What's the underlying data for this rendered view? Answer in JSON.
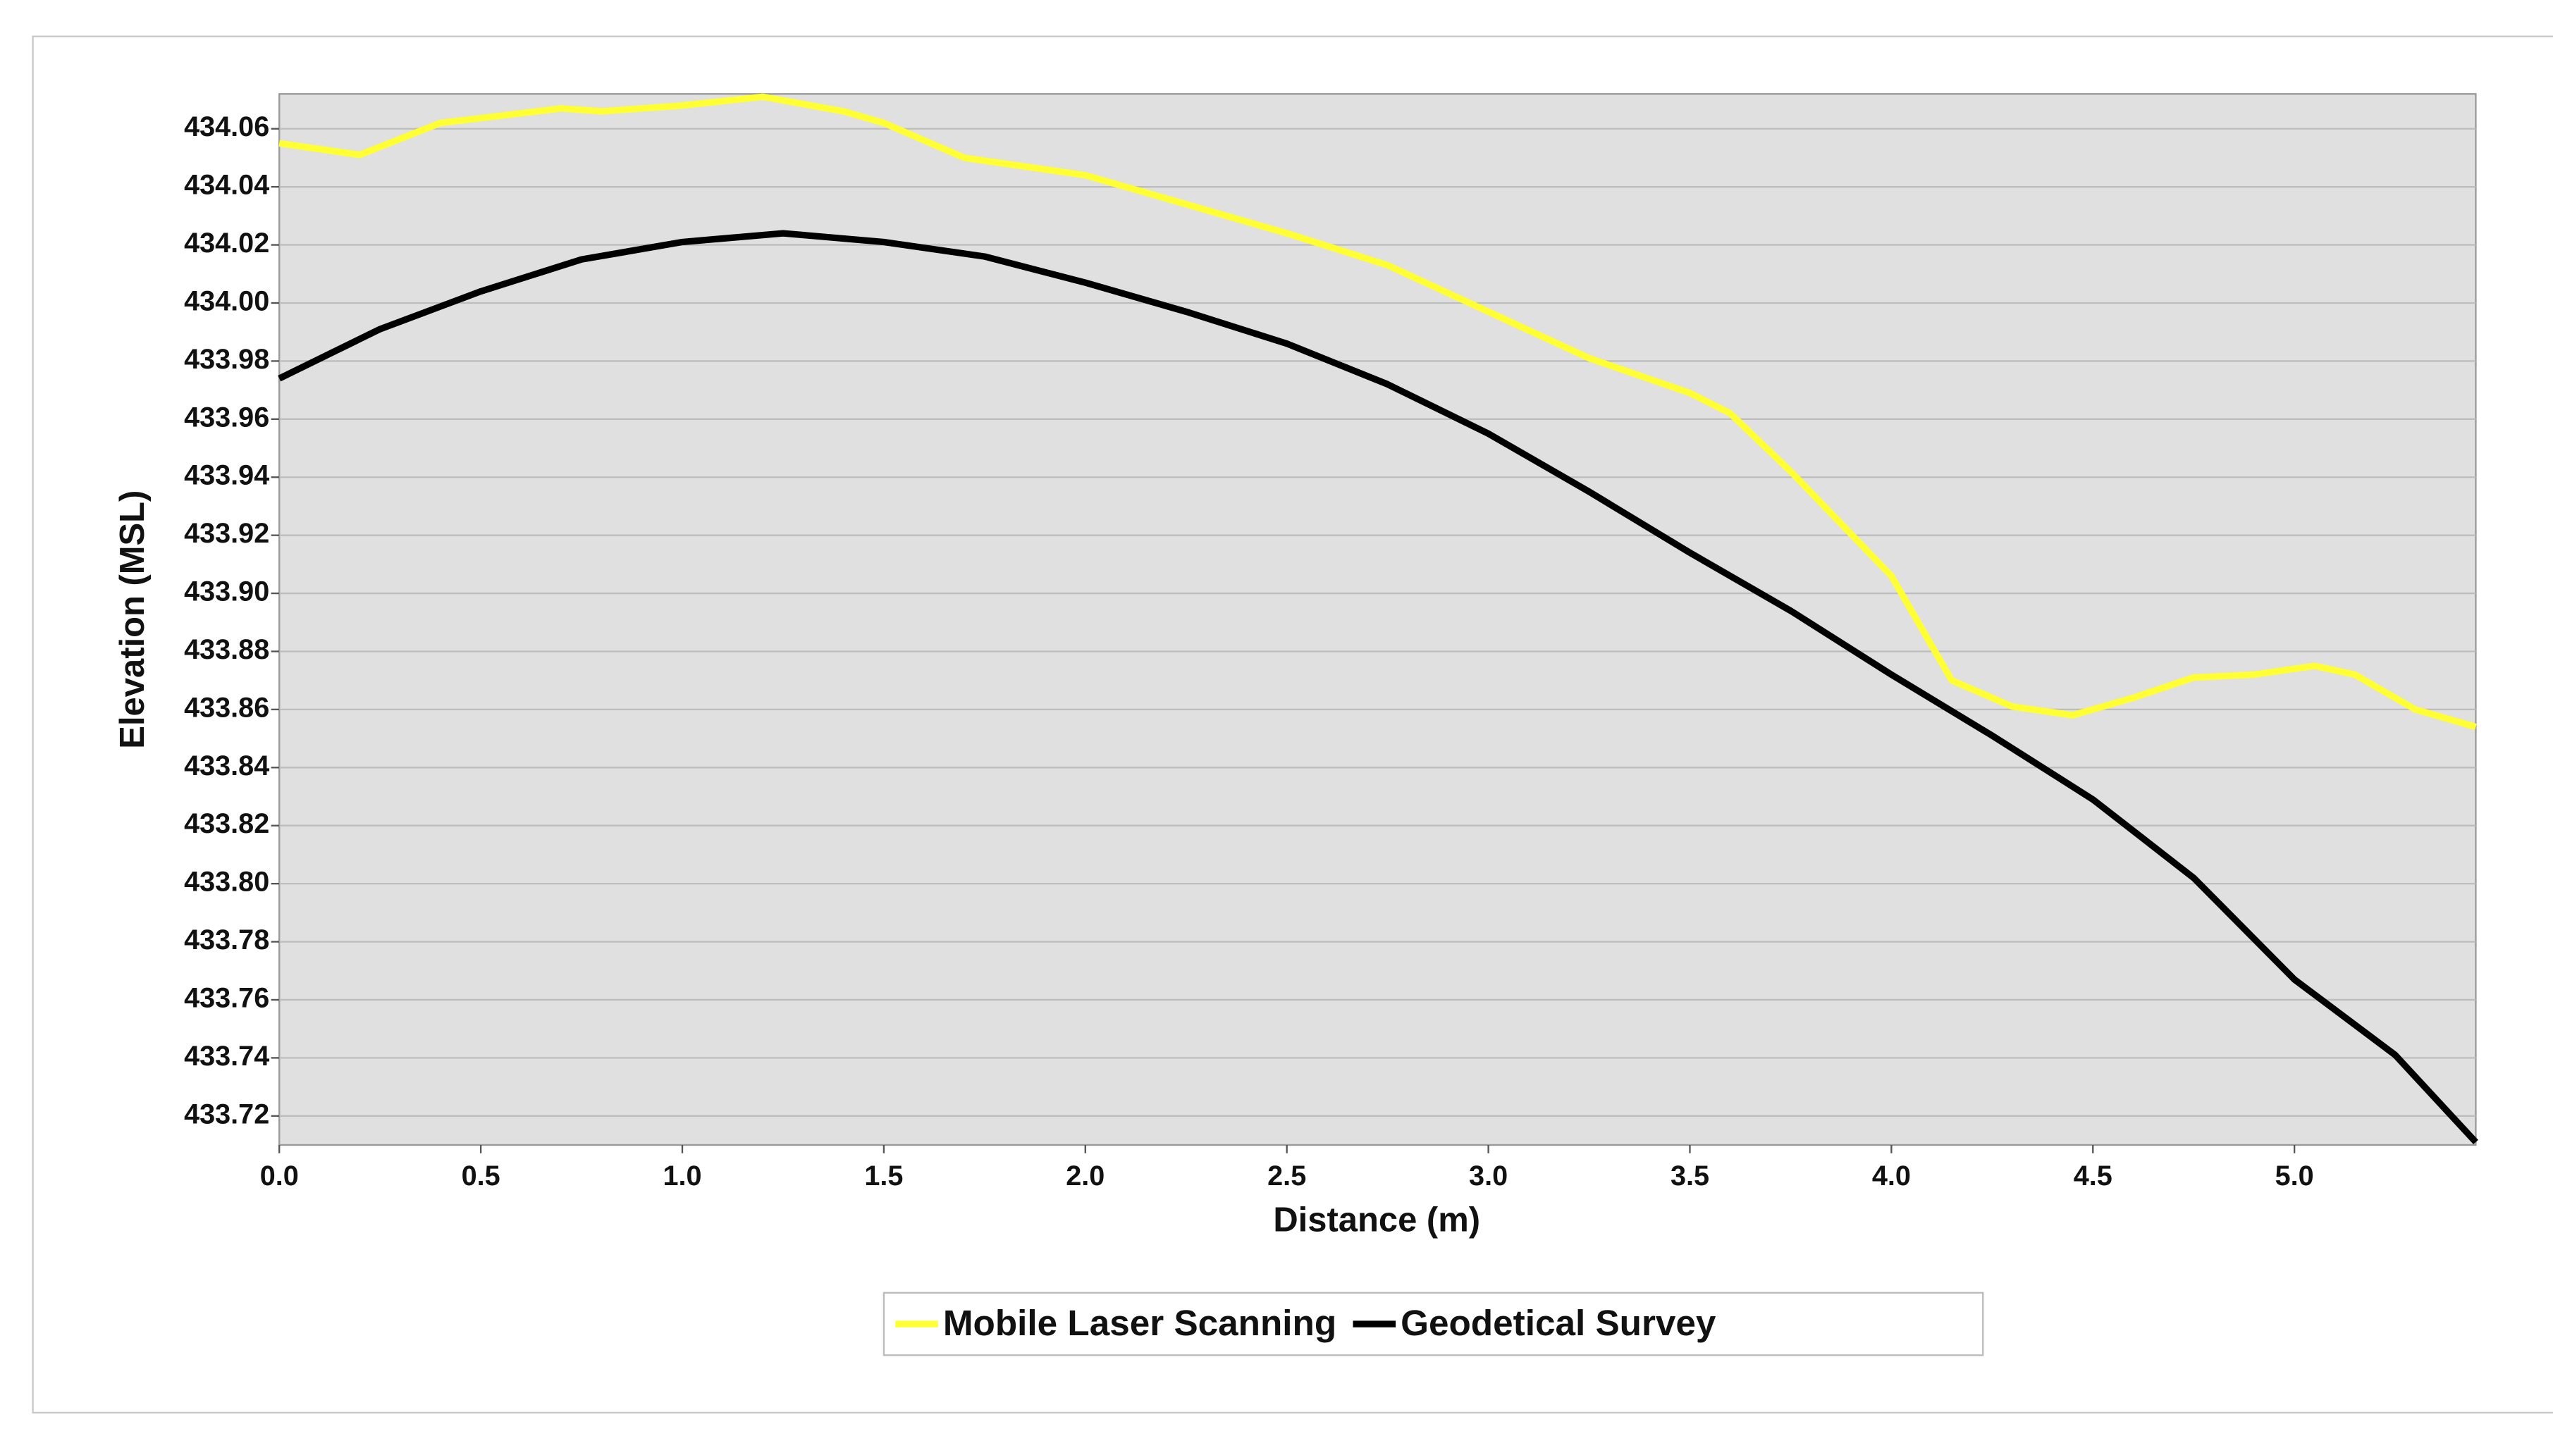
{
  "chart_data": {
    "type": "line",
    "x_label": "Distance (m)",
    "y_label": "Elevation (MSL)",
    "xlim": [
      0,
      5.45
    ],
    "ylim": [
      433.71,
      434.072
    ],
    "xticks": [
      {
        "value": 0,
        "label": "0.0"
      },
      0.5,
      {
        "value": 1,
        "label": "1.0"
      },
      1.5,
      {
        "value": 2,
        "label": "2.0"
      },
      2.5,
      {
        "value": 3,
        "label": "3.0"
      },
      3.5,
      {
        "value": 4,
        "label": "4.0"
      },
      4.5,
      {
        "value": 5,
        "label": "5.0"
      }
    ],
    "yticks": [
      433.72,
      433.74,
      433.76,
      433.78,
      {
        "value": 433.8,
        "label": "433.80"
      },
      433.82,
      433.84,
      433.86,
      433.88,
      {
        "value": 433.9,
        "label": "433.90"
      },
      433.92,
      433.94,
      433.96,
      433.98,
      {
        "value": 434,
        "label": "434.00"
      },
      434.02,
      434.04,
      434.06
    ],
    "grid": true,
    "legend": "bottom",
    "series": [
      {
        "name": "Mobile Laser Scanning",
        "color": "#ffff33",
        "x": [
          0,
          0.2,
          0.4,
          0.7,
          0.8,
          1.0,
          1.2,
          1.4,
          1.5,
          1.7,
          2.0,
          2.25,
          2.5,
          2.75,
          3.0,
          3.25,
          3.5,
          3.6,
          3.75,
          4.0,
          4.15,
          4.3,
          4.45,
          4.6,
          4.75,
          4.9,
          5.05,
          5.15,
          5.3,
          5.45
        ],
        "values": [
          434.055,
          434.051,
          434.062,
          434.067,
          434.066,
          434.068,
          434.071,
          434.066,
          434.062,
          434.05,
          434.044,
          434.034,
          434.024,
          434.013,
          433.997,
          433.981,
          433.969,
          433.962,
          433.942,
          433.906,
          433.87,
          433.861,
          433.858,
          433.864,
          433.871,
          433.872,
          433.875,
          433.872,
          433.86,
          433.854
        ]
      },
      {
        "name": "Geodetical Survey",
        "color": "#000000",
        "x": [
          0,
          0.25,
          0.5,
          0.75,
          1.0,
          1.25,
          1.5,
          1.75,
          2.0,
          2.25,
          2.5,
          2.75,
          3.0,
          3.25,
          3.5,
          3.75,
          4.0,
          4.25,
          4.5,
          4.75,
          5.0,
          5.25,
          5.45
        ],
        "values": [
          433.974,
          433.991,
          434.004,
          434.015,
          434.021,
          434.024,
          434.021,
          434.016,
          434.007,
          433.997,
          433.986,
          433.972,
          433.955,
          433.935,
          433.914,
          433.894,
          433.872,
          433.851,
          433.829,
          433.802,
          433.767,
          433.741,
          433.711
        ]
      }
    ]
  }
}
